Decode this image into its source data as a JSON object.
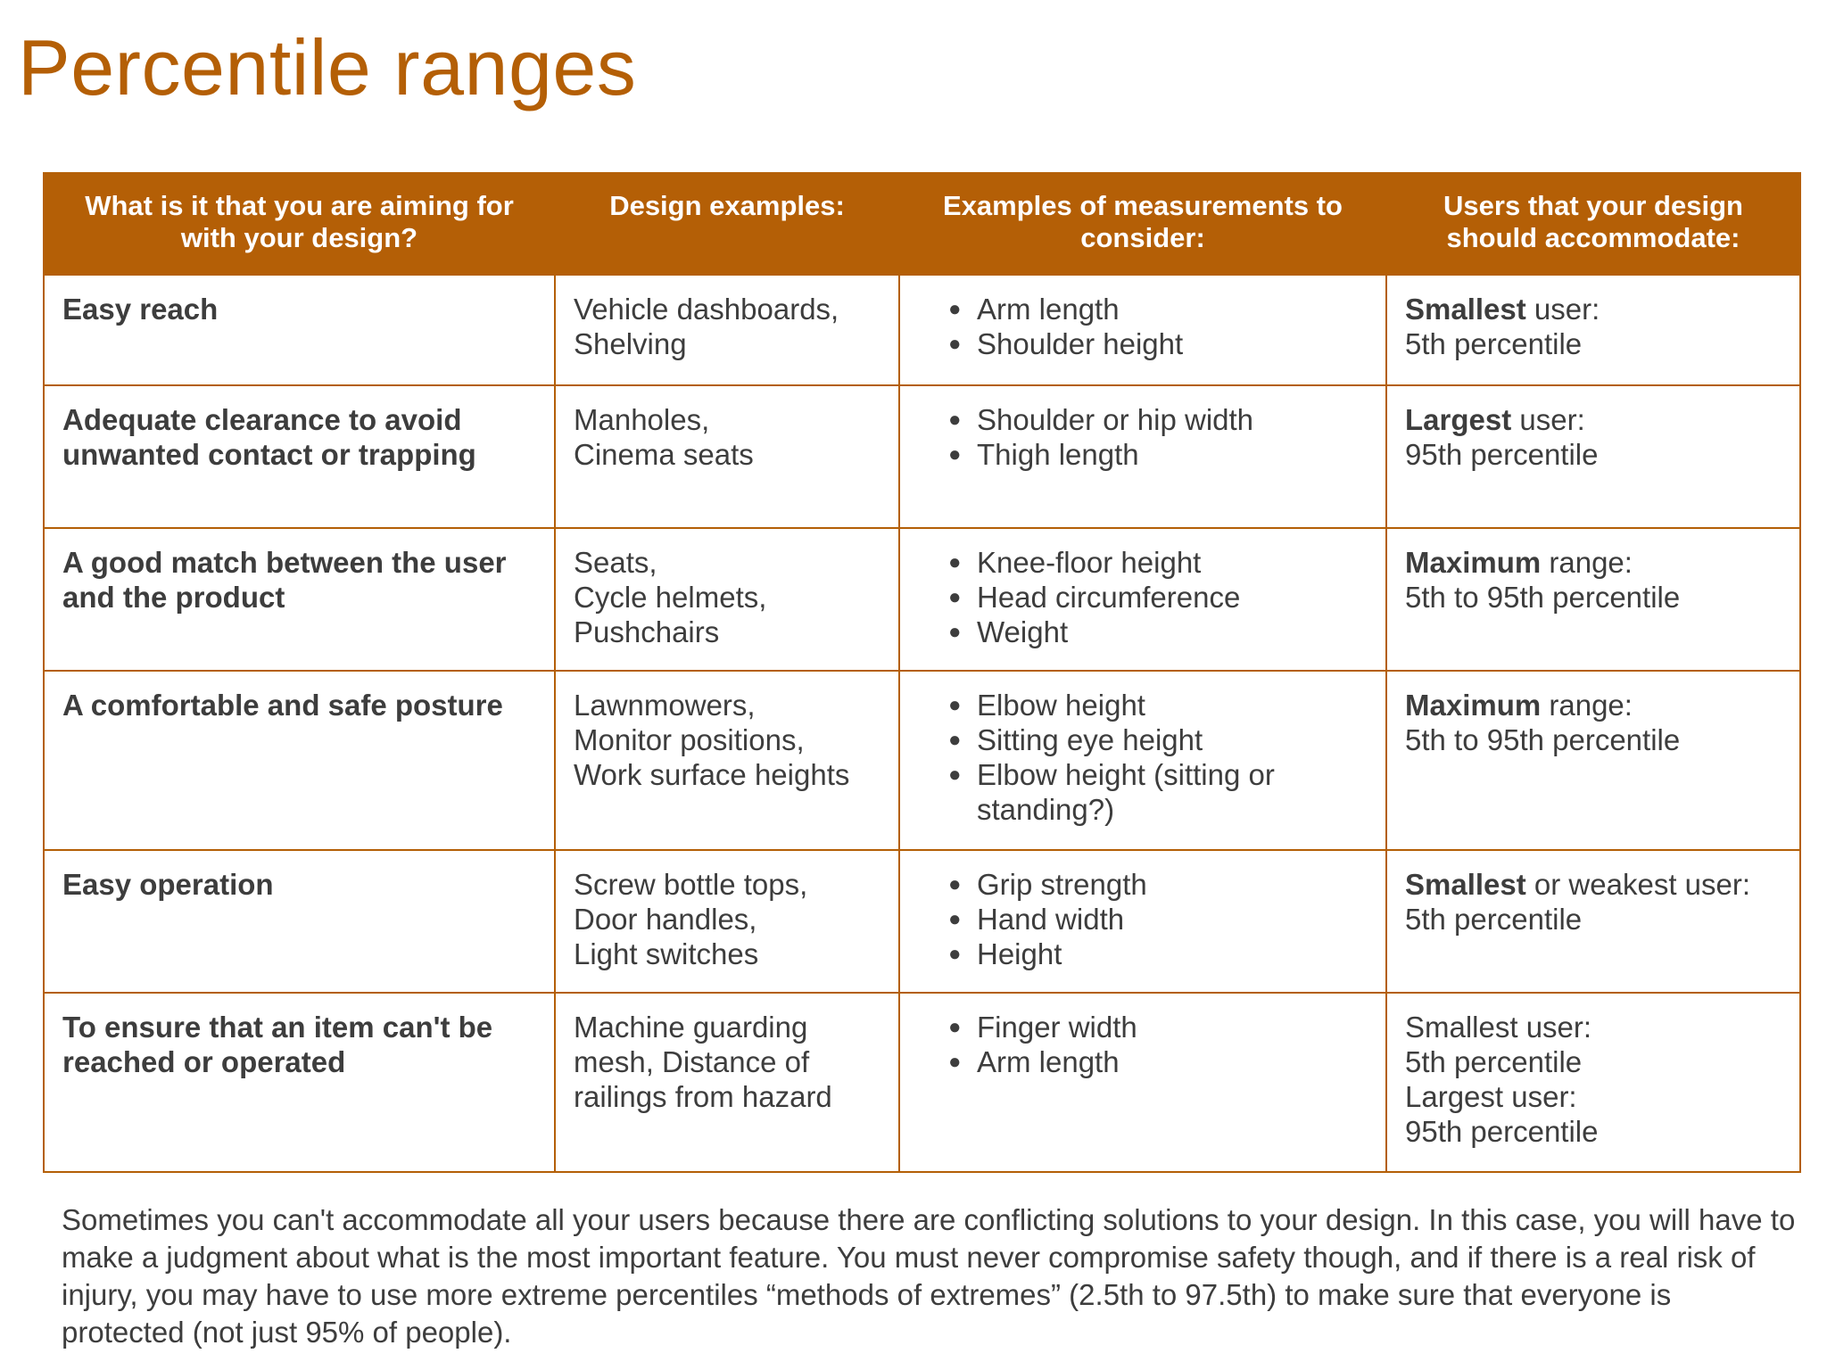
{
  "page": {
    "title": "Percentile ranges",
    "accent_color": "#b45f06"
  },
  "table": {
    "headers": [
      "What is it that you are aiming for with your design?",
      "Design examples:",
      "Examples of measurements to consider:",
      "Users that your design should accommodate:"
    ],
    "rows": [
      {
        "aim": "Easy reach",
        "examples": [
          "Vehicle dashboards,",
          "Shelving"
        ],
        "measurements": [
          "Arm length",
          "Shoulder height"
        ],
        "users": [
          {
            "bold": "Smallest",
            "rest": " user:"
          },
          {
            "bold": "",
            "rest": "5th percentile"
          }
        ]
      },
      {
        "aim": "Adequate clearance to avoid unwanted contact or trapping",
        "examples": [
          "Manholes,",
          "Cinema seats"
        ],
        "measurements": [
          "Shoulder or hip width",
          "Thigh length"
        ],
        "users": [
          {
            "bold": "Largest",
            "rest": " user:"
          },
          {
            "bold": "",
            "rest": "95th percentile"
          }
        ]
      },
      {
        "aim": "A good match between the user and the product",
        "examples": [
          "Seats,",
          "Cycle helmets,",
          "Pushchairs"
        ],
        "measurements": [
          "Knee-floor height",
          "Head circumference",
          "Weight"
        ],
        "users": [
          {
            "bold": "Maximum",
            "rest": " range:"
          },
          {
            "bold": "",
            "rest": "5th to 95th percentile"
          }
        ]
      },
      {
        "aim": "A comfortable and safe posture",
        "examples": [
          "Lawnmowers,",
          "Monitor positions,",
          "Work surface heights"
        ],
        "measurements": [
          "Elbow height",
          "Sitting eye height",
          "Elbow height (sitting or standing?)"
        ],
        "users": [
          {
            "bold": "Maximum",
            "rest": " range:"
          },
          {
            "bold": "",
            "rest": "5th to 95th percentile"
          }
        ]
      },
      {
        "aim": "Easy operation",
        "examples": [
          "Screw bottle tops,",
          "Door handles,",
          "Light switches"
        ],
        "measurements": [
          "Grip strength",
          "Hand width",
          "Height"
        ],
        "users": [
          {
            "bold": "Smallest",
            "rest": " or weakest user:"
          },
          {
            "bold": "",
            "rest": "5th percentile"
          }
        ]
      },
      {
        "aim": "To ensure that an item can't be reached or operated",
        "examples": [
          "Machine guarding mesh, Distance of railings from hazard"
        ],
        "measurements": [
          "Finger width",
          "Arm length"
        ],
        "users": [
          {
            "bold": "",
            "rest": "Smallest user:"
          },
          {
            "bold": "",
            "rest": "5th percentile"
          },
          {
            "bold": "",
            "rest": "Largest user:"
          },
          {
            "bold": "",
            "rest": "95th percentile"
          }
        ]
      }
    ]
  },
  "footnote": "Sometimes you can't accommodate all your users because there are conflicting solutions to your design. In this case, you will have to make a judgment about what is the most important feature. You must never compromise safety though, and if there is a real risk of injury, you may have to use more extreme percentiles  “methods of extremes”  (2.5th to 97.5th) to make sure that everyone is protected (not just 95% of people)."
}
